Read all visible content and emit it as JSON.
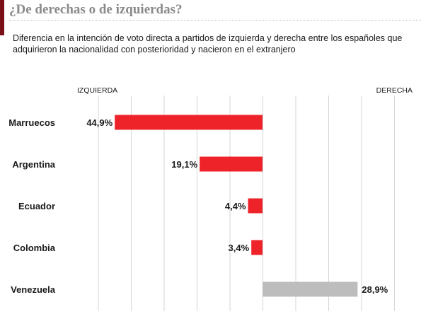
{
  "header": {
    "title": "¿De derechas o de izquierdas?",
    "subtitle": "Diferencia en la intención de voto directa a partidos de izquierda y derecha entre los españoles que adquirieron la nacionalidad con posterioridad y nacieron en el extranjero"
  },
  "colors": {
    "left": "#ee2229",
    "right": "#bdbdbd",
    "accent": "#7a1018"
  },
  "chart_data": {
    "type": "bar",
    "orientation": "horizontal-diverging",
    "title": "",
    "xlabel": "",
    "ylabel": "",
    "side_labels": {
      "left": "IZQUIERDA",
      "right": "DERECHA"
    },
    "categories": [
      "Marruecos",
      "Argentina",
      "Ecuador",
      "Colombia",
      "Venezuela"
    ],
    "values": [
      -44.9,
      -19.1,
      -4.4,
      -3.4,
      28.9
    ],
    "value_labels": [
      "44,9%",
      "19,1%",
      "4,4%",
      "3,4%",
      "28,9%"
    ],
    "xlim": [
      -50,
      40
    ],
    "grid": true
  }
}
